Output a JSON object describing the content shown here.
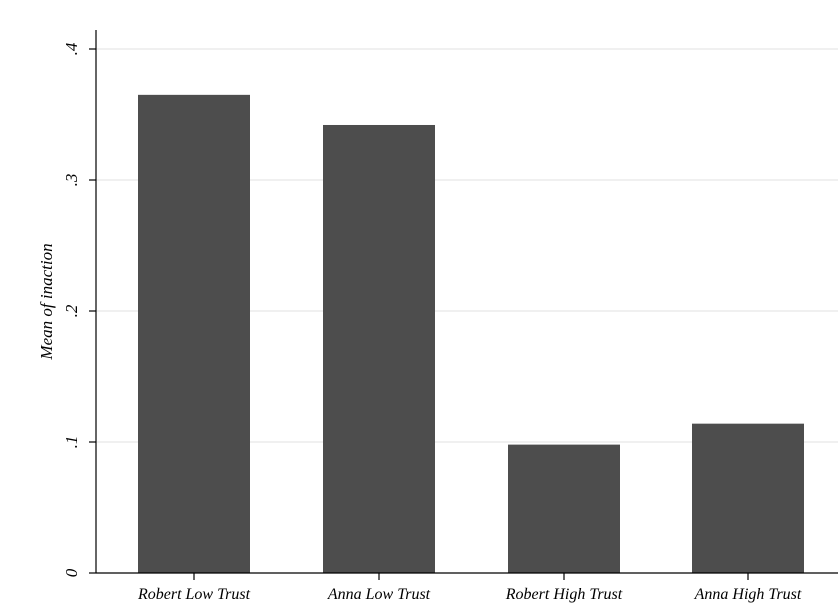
{
  "chart_data": {
    "type": "bar",
    "title": "",
    "xlabel": "",
    "ylabel": "Mean of inaction",
    "categories": [
      "Robert Low Trust",
      "Anna Low Trust",
      "Robert High Trust",
      "Anna High Trust"
    ],
    "series": [
      {
        "values": [
          0.365,
          0.342,
          0.098,
          0.114
        ]
      }
    ],
    "ylim": [
      0,
      0.4
    ],
    "yticks": [
      0,
      0.1,
      0.2,
      0.3,
      0.4
    ],
    "ytick_labels": [
      "0",
      ".1",
      ".2",
      ".3",
      ".4"
    ],
    "grid": true,
    "legend": "none",
    "colors": {
      "bar": "#4d4d4d",
      "grid": "#e8e8e8",
      "axis": "#000000",
      "background": "#ffffff"
    }
  }
}
